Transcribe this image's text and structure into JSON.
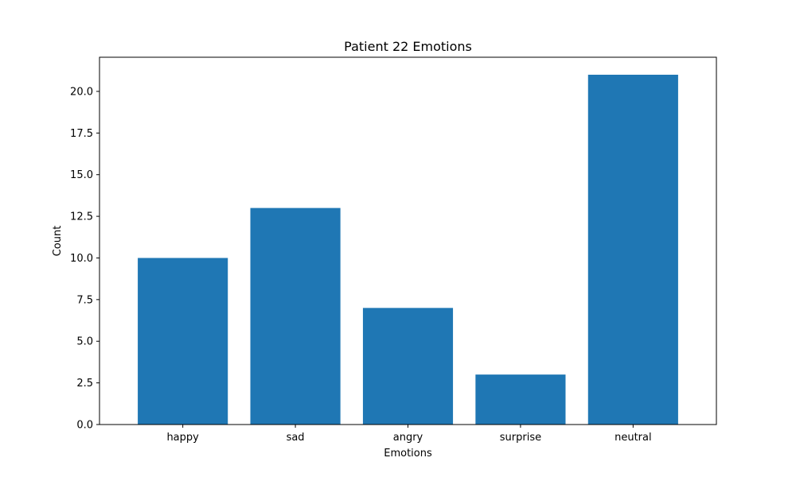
{
  "chart_data": {
    "type": "bar",
    "title": "Patient 22 Emotions",
    "xlabel": "Emotions",
    "ylabel": "Count",
    "categories": [
      "happy",
      "sad",
      "angry",
      "surprise",
      "neutral"
    ],
    "values": [
      10,
      13,
      7,
      3,
      21
    ],
    "ylim": [
      0,
      22.05
    ],
    "yticks": [
      0.0,
      2.5,
      5.0,
      7.5,
      10.0,
      12.5,
      15.0,
      17.5,
      20.0
    ],
    "ytick_labels": [
      "0.0",
      "2.5",
      "5.0",
      "7.5",
      "10.0",
      "12.5",
      "15.0",
      "17.5",
      "20.0"
    ],
    "bar_color": "#1f77b4",
    "grid": false,
    "legend": "none"
  }
}
